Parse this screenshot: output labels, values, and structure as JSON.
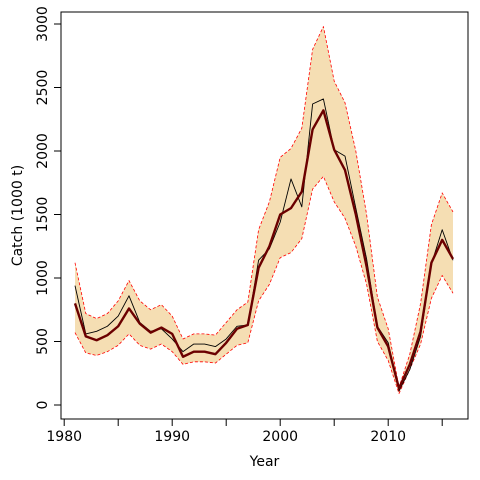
{
  "chart_data": {
    "type": "line",
    "xlabel": "Year",
    "ylabel": "Catch (1000 t)",
    "xlim": [
      1980,
      2017
    ],
    "ylim": [
      0,
      3000
    ],
    "x_ticks": [
      1980,
      1990,
      2000,
      2010
    ],
    "y_ticks": [
      0,
      500,
      1000,
      1500,
      2000,
      2500,
      3000
    ],
    "grid": false,
    "x": [
      1981,
      1982,
      1983,
      1984,
      1985,
      1986,
      1987,
      1988,
      1989,
      1990,
      1991,
      1992,
      1993,
      1994,
      1995,
      1996,
      1997,
      1998,
      1999,
      2000,
      2001,
      2002,
      2003,
      2004,
      2005,
      2006,
      2007,
      2008,
      2009,
      2010,
      2011,
      2012,
      2013,
      2014,
      2015,
      2016
    ],
    "series": [
      {
        "role": "upper_band",
        "values": [
          1120,
          720,
          680,
          720,
          820,
          980,
          820,
          750,
          790,
          700,
          520,
          560,
          560,
          550,
          650,
          750,
          810,
          1380,
          1600,
          1950,
          2020,
          2180,
          2800,
          2980,
          2550,
          2380,
          2000,
          1500,
          850,
          600,
          140,
          400,
          800,
          1420,
          1670,
          1520
        ],
        "color": "#ff0000"
      },
      {
        "role": "lower_band",
        "values": [
          570,
          410,
          390,
          420,
          470,
          560,
          470,
          440,
          480,
          420,
          320,
          340,
          340,
          330,
          400,
          470,
          490,
          820,
          950,
          1160,
          1200,
          1310,
          1700,
          1800,
          1600,
          1470,
          1250,
          950,
          500,
          350,
          90,
          280,
          480,
          840,
          1020,
          880
        ],
        "color": "#ff0000"
      },
      {
        "role": "observed",
        "values": [
          940,
          560,
          580,
          620,
          700,
          860,
          650,
          580,
          600,
          520,
          420,
          480,
          480,
          460,
          520,
          620,
          630,
          1140,
          1230,
          1440,
          1780,
          1560,
          2370,
          2410,
          2010,
          1960,
          1550,
          1150,
          620,
          490,
          110,
          280,
          540,
          1110,
          1380,
          1140
        ],
        "color": "#000000"
      },
      {
        "role": "fitted",
        "values": [
          800,
          540,
          510,
          550,
          620,
          760,
          640,
          570,
          610,
          560,
          380,
          420,
          420,
          400,
          490,
          600,
          630,
          1080,
          1250,
          1500,
          1550,
          1680,
          2170,
          2320,
          2010,
          1850,
          1500,
          1090,
          610,
          460,
          130,
          320,
          580,
          1120,
          1300,
          1150
        ],
        "color": "#6b0000"
      }
    ],
    "band_fill": "#f5deb3"
  }
}
